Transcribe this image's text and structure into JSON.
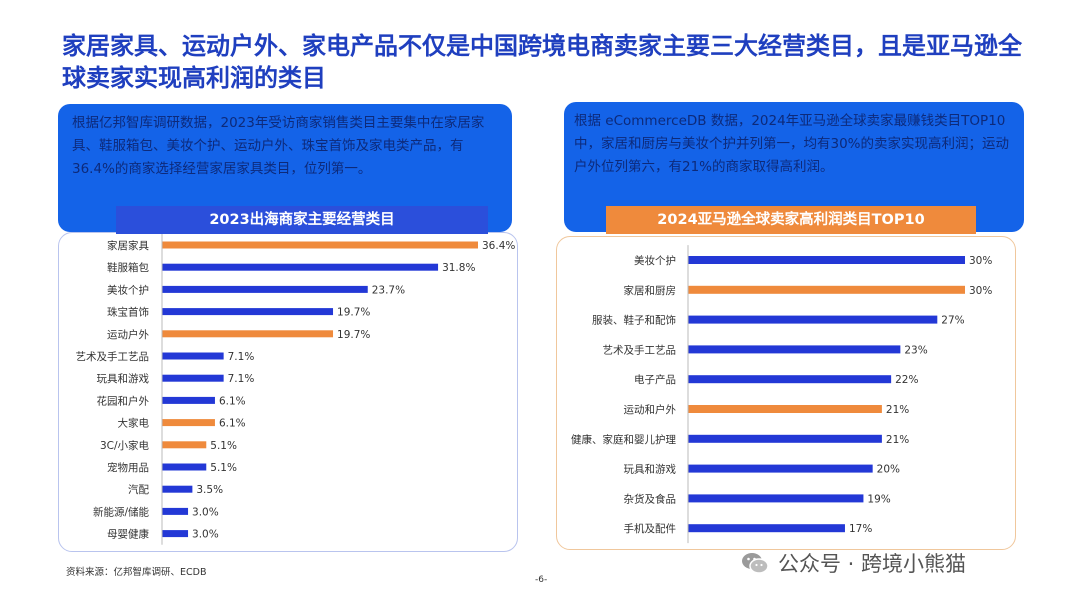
{
  "page": {
    "title": "家居家具、运动户外、家电产品不仅是中国跨境电商卖家主要三大经营类目，且是亚马逊全球卖家实现高利润的类目",
    "source": "资料来源：亿邦智库调研、ECDB",
    "page_number": "-6-",
    "watermark": "公众号 · 跨境小熊猫"
  },
  "left_panel": {
    "description": "根据亿邦智库调研数据，2023年受访商家销售类目主要集中在家居家具、鞋服箱包、美妆个护、运动户外、珠宝首饰及家电类产品，有36.4%的商家选择经营家居家具类目，位列第一。"
  },
  "right_panel": {
    "description": "根据 eCommerceDB 数据，2024年亚马逊全球卖家最赚钱类目TOP10中，家居和厨房与美妆个护并列第一，均有30%的卖家实现高利润；运动户外位列第六，有21%的商家取得高利润。"
  },
  "colors": {
    "blue": "#2338d6",
    "orange": "#ef8a3c",
    "panel_blue": "#1463e8"
  },
  "chart_data": [
    {
      "type": "bar",
      "orientation": "horizontal",
      "title": "2023出海商家主要经营类目",
      "categories": [
        "家居家具",
        "鞋服箱包",
        "美妆个护",
        "珠宝首饰",
        "运动户外",
        "艺术及手工艺品",
        "玩具和游戏",
        "花园和户外",
        "大家电",
        "3C/小家电",
        "宠物用品",
        "汽配",
        "新能源/储能",
        "母婴健康"
      ],
      "values": [
        36.4,
        31.8,
        23.7,
        19.7,
        19.7,
        7.1,
        7.1,
        6.1,
        6.1,
        5.1,
        5.1,
        3.5,
        3.0,
        3.0
      ],
      "labels": [
        "36.4%",
        "31.8%",
        "23.7%",
        "19.7%",
        "19.7%",
        "7.1%",
        "7.1%",
        "6.1%",
        "6.1%",
        "5.1%",
        "5.1%",
        "3.5%",
        "3.0%",
        "3.0%"
      ],
      "highlight": [
        true,
        false,
        false,
        false,
        true,
        false,
        false,
        false,
        true,
        true,
        false,
        false,
        false,
        false
      ],
      "xlim": [
        0,
        36.4
      ]
    },
    {
      "type": "bar",
      "orientation": "horizontal",
      "title": "2024亚马逊全球卖家高利润类目TOP10",
      "categories": [
        "美妆个护",
        "家居和厨房",
        "服装、鞋子和配饰",
        "艺术及手工艺品",
        "电子产品",
        "运动和户外",
        "健康、家庭和婴儿护理",
        "玩具和游戏",
        "杂货及食品",
        "手机及配件"
      ],
      "values": [
        30,
        30,
        27,
        23,
        22,
        21,
        21,
        20,
        19,
        17
      ],
      "labels": [
        "30%",
        "30%",
        "27%",
        "23%",
        "22%",
        "21%",
        "21%",
        "20%",
        "19%",
        "17%"
      ],
      "highlight": [
        false,
        true,
        false,
        false,
        false,
        true,
        false,
        false,
        false,
        false
      ],
      "xlim": [
        0,
        30
      ]
    }
  ]
}
